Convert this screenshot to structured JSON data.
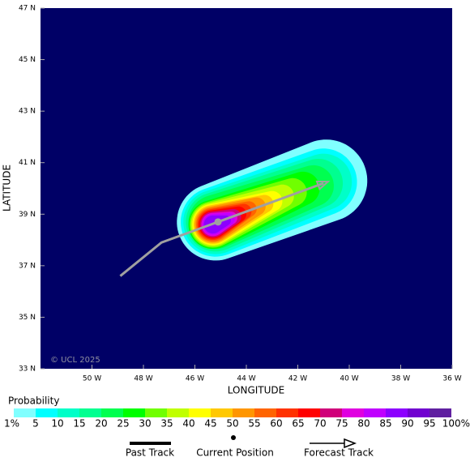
{
  "chart_data": {
    "type": "map",
    "xlabel": "LONGITUDE",
    "ylabel": "LATITUDE",
    "credit": "© UCL 2025",
    "background": "#000066",
    "xlim": [
      -52,
      -36
    ],
    "ylim": [
      33,
      47
    ],
    "xticks": [
      {
        "value": -50,
        "label": "50 W"
      },
      {
        "value": -48,
        "label": "48 W"
      },
      {
        "value": -46,
        "label": "46 W"
      },
      {
        "value": -44,
        "label": "44 W"
      },
      {
        "value": -42,
        "label": "42 W"
      },
      {
        "value": -40,
        "label": "40 W"
      },
      {
        "value": -38,
        "label": "38 W"
      },
      {
        "value": -36,
        "label": "36 W"
      }
    ],
    "yticks": [
      {
        "value": 33,
        "label": "33 N"
      },
      {
        "value": 35,
        "label": "35 N"
      },
      {
        "value": 37,
        "label": "37 N"
      },
      {
        "value": 39,
        "label": "39 N"
      },
      {
        "value": 41,
        "label": "41 N"
      },
      {
        "value": 43,
        "label": "43 N"
      },
      {
        "value": 45,
        "label": "45 N"
      },
      {
        "value": 47,
        "label": "47 N"
      }
    ],
    "colorbar_title": "Probability",
    "levels": [
      {
        "value": 1,
        "label": "1%"
      },
      5,
      10,
      15,
      20,
      25,
      30,
      35,
      40,
      45,
      50,
      55,
      60,
      65,
      70,
      75,
      80,
      85,
      90,
      95,
      {
        "value": 100,
        "label": "100%"
      }
    ],
    "colors": [
      "#80ffff",
      "#00ffff",
      "#00ffc8",
      "#00ff90",
      "#00ff50",
      "#00ff00",
      "#70ff00",
      "#c0ff00",
      "#ffff00",
      "#ffc800",
      "#ff9600",
      "#ff6400",
      "#ff3200",
      "#ff0000",
      "#d0007a",
      "#e000e0",
      "#c000ff",
      "#8c00ff",
      "#7000d0",
      "#6020a0"
    ],
    "probability_field": [
      {
        "level": 1,
        "start": [
          -45.2,
          38.7
        ],
        "end": [
          -40.9,
          40.3
        ],
        "radius": [
          1.5,
          1.6
        ]
      },
      {
        "level": 5,
        "start": [
          -45.2,
          38.7
        ],
        "end": [
          -41.0,
          40.25
        ],
        "radius": [
          1.35,
          1.3
        ]
      },
      {
        "level": 10,
        "start": [
          -45.2,
          38.7
        ],
        "end": [
          -41.0,
          40.25
        ],
        "radius": [
          1.25,
          1.1
        ]
      },
      {
        "level": 15,
        "start": [
          -45.2,
          38.7
        ],
        "end": [
          -41.2,
          40.2
        ],
        "radius": [
          1.15,
          0.95
        ]
      },
      {
        "level": 20,
        "start": [
          -45.2,
          38.7
        ],
        "end": [
          -41.4,
          40.1
        ],
        "radius": [
          1.05,
          0.8
        ]
      },
      {
        "level": 25,
        "start": [
          -45.3,
          38.6
        ],
        "end": [
          -41.8,
          40.0
        ],
        "radius": [
          0.95,
          0.65
        ]
      },
      {
        "level": 30,
        "start": [
          -45.3,
          38.6
        ],
        "end": [
          -42.2,
          39.85
        ],
        "radius": [
          0.9,
          0.55
        ]
      },
      {
        "level": 35,
        "start": [
          -45.3,
          38.6
        ],
        "end": [
          -42.6,
          39.7
        ],
        "radius": [
          0.85,
          0.45
        ]
      },
      {
        "level": 40,
        "start": [
          -45.3,
          38.6
        ],
        "end": [
          -43.0,
          39.5
        ],
        "radius": [
          0.8,
          0.4
        ]
      },
      {
        "level": 45,
        "start": [
          -45.3,
          38.6
        ],
        "end": [
          -43.3,
          39.4
        ],
        "radius": [
          0.75,
          0.35
        ]
      },
      {
        "level": 50,
        "start": [
          -45.3,
          38.6
        ],
        "end": [
          -43.6,
          39.3
        ],
        "radius": [
          0.7,
          0.35
        ]
      },
      {
        "level": 55,
        "start": [
          -45.3,
          38.6
        ],
        "end": [
          -43.9,
          39.2
        ],
        "radius": [
          0.65,
          0.3
        ]
      },
      {
        "level": 60,
        "start": [
          -45.3,
          38.6
        ],
        "end": [
          -44.1,
          39.1
        ],
        "radius": [
          0.6,
          0.3
        ]
      },
      {
        "level": 65,
        "start": [
          -45.3,
          38.6
        ],
        "end": [
          -44.3,
          39.0
        ],
        "radius": [
          0.55,
          0.3
        ]
      },
      {
        "level": 70,
        "start": [
          -45.3,
          38.6
        ],
        "end": [
          -44.5,
          38.9
        ],
        "radius": [
          0.5,
          0.3
        ]
      },
      {
        "level": 75,
        "start": [
          -45.3,
          38.6
        ],
        "end": [
          -44.6,
          38.85
        ],
        "radius": [
          0.45,
          0.25
        ]
      },
      {
        "level": 80,
        "start": [
          -45.3,
          38.6
        ],
        "end": [
          -44.7,
          38.8
        ],
        "radius": [
          0.4,
          0.25
        ]
      },
      {
        "level": 85,
        "start": [
          -45.3,
          38.6
        ],
        "end": [
          -44.8,
          38.75
        ],
        "radius": [
          0.35,
          0.2
        ]
      }
    ],
    "track_color": "#a0a0a0",
    "past_track": {
      "lon": [
        -48.9,
        -47.3,
        -45.1
      ],
      "lat": [
        36.6,
        37.9,
        38.7
      ]
    },
    "current_position": {
      "lon": -45.1,
      "lat": 38.7
    },
    "forecast_track": {
      "lon": [
        -45.1,
        -41.0
      ],
      "lat": [
        38.7,
        40.2
      ]
    },
    "legend": [
      "Past Track",
      "Current Position",
      "Forecast Track"
    ]
  }
}
